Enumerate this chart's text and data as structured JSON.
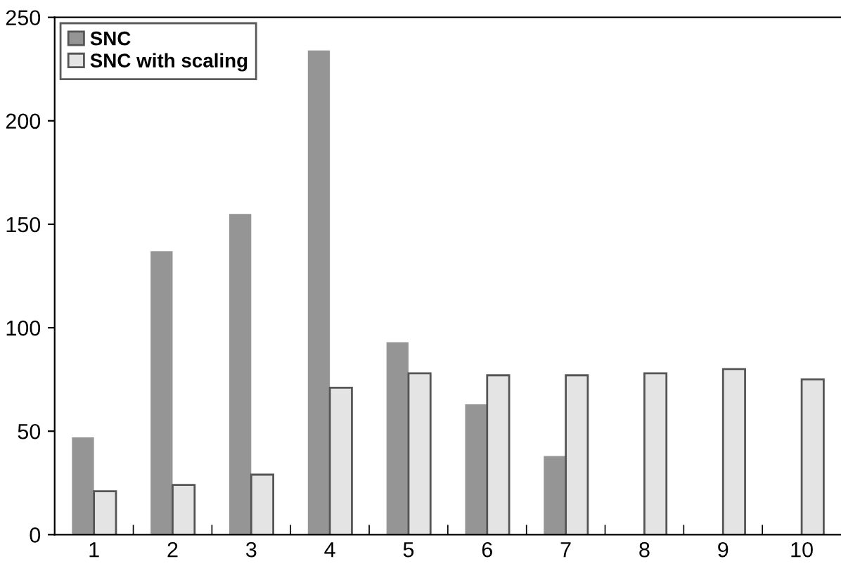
{
  "chart_data": {
    "type": "bar",
    "categories": [
      "1",
      "2",
      "3",
      "4",
      "5",
      "6",
      "7",
      "8",
      "9",
      "10"
    ],
    "series": [
      {
        "name": "SNC",
        "color": "#959595",
        "values": [
          47,
          137,
          155,
          234,
          93,
          63,
          38,
          null,
          null,
          null
        ]
      },
      {
        "name": "SNC with scaling",
        "color": "#e4e4e4",
        "values": [
          21,
          24,
          29,
          71,
          78,
          77,
          77,
          78,
          80,
          75
        ]
      }
    ],
    "ylim": [
      0,
      250
    ],
    "yticks": [
      0,
      50,
      100,
      150,
      200,
      250
    ],
    "legend": "top left",
    "grid": false
  }
}
